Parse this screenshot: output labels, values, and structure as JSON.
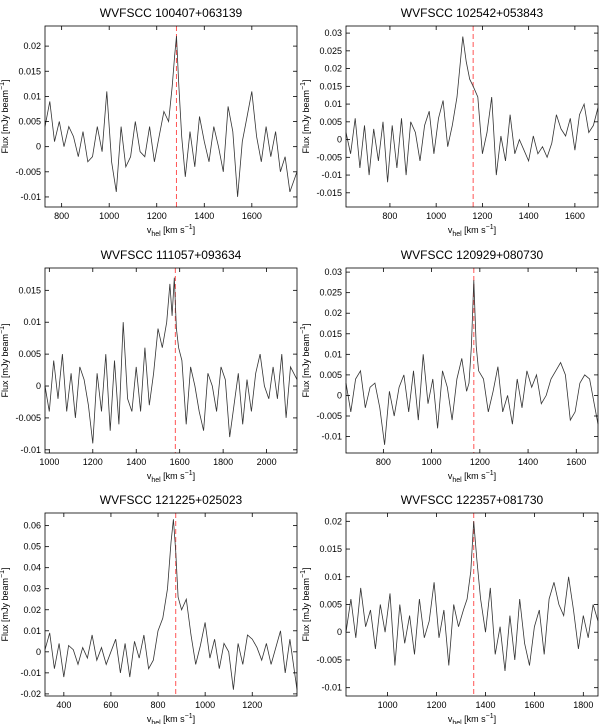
{
  "chart_data": [
    {
      "type": "line",
      "title": "WVFSCC 100407+063139",
      "xlabel": "v_hel [km s^-1]",
      "ylabel": "Flux [mJy beam^-1]",
      "xlim": [
        730,
        1790
      ],
      "ylim": [
        -0.012,
        0.024
      ],
      "xticks": [
        800,
        1000,
        1200,
        1400,
        1600
      ],
      "yticks": [
        -0.01,
        -0.005,
        0,
        0.005,
        0.01,
        0.015,
        0.02
      ],
      "ytick_labels": [
        "-0.01",
        "-0.005",
        "0",
        "0.005",
        "0.01",
        "0.015",
        "0.02"
      ],
      "marker_x": 1283,
      "series": [
        {
          "x": [
            730,
            750,
            770,
            790,
            810,
            830,
            850,
            870,
            890,
            910,
            930,
            950,
            970,
            990,
            1010,
            1030,
            1050,
            1070,
            1090,
            1110,
            1130,
            1150,
            1170,
            1190,
            1210,
            1230,
            1250,
            1265,
            1275,
            1283,
            1292,
            1305,
            1320,
            1340,
            1360,
            1380,
            1400,
            1420,
            1440,
            1460,
            1480,
            1500,
            1520,
            1540,
            1560,
            1580,
            1600,
            1620,
            1640,
            1660,
            1680,
            1700,
            1720,
            1740,
            1760,
            1790
          ],
          "y": [
            0.004,
            0.009,
            0.001,
            0.005,
            0.0,
            0.004,
            0.002,
            -0.002,
            0.003,
            -0.003,
            -0.002,
            0.004,
            -0.001,
            0.011,
            -0.003,
            -0.009,
            0.004,
            -0.004,
            -0.002,
            0.005,
            -0.001,
            -0.002,
            0.004,
            -0.003,
            0.002,
            0.007,
            0.005,
            0.012,
            0.018,
            0.022,
            0.013,
            0.002,
            -0.006,
            0.003,
            -0.004,
            0.006,
            0.001,
            -0.003,
            0.004,
            0.0,
            -0.005,
            0.008,
            0.003,
            -0.01,
            0.001,
            0.006,
            0.011,
            0.002,
            -0.003,
            0.004,
            -0.002,
            0.003,
            -0.005,
            -0.002,
            -0.009,
            -0.005
          ]
        }
      ]
    },
    {
      "type": "line",
      "title": "WVFSCC 102542+053843",
      "xlabel": "v_hel [km s^-1]",
      "ylabel": "Flux [mJy beam^-1]",
      "xlim": [
        610,
        1700
      ],
      "ylim": [
        -0.019,
        0.032
      ],
      "xticks": [
        800,
        1000,
        1200,
        1400,
        1600
      ],
      "yticks": [
        -0.015,
        -0.01,
        -0.005,
        0,
        0.005,
        0.01,
        0.015,
        0.02,
        0.025,
        0.03
      ],
      "ytick_labels": [
        "-0.015",
        "-0.01",
        "-0.005",
        "0",
        "0.005",
        "0.01",
        "0.015",
        "0.02",
        "0.025",
        "0.03"
      ],
      "marker_x": 1160,
      "series": [
        {
          "x": [
            610,
            630,
            650,
            670,
            690,
            710,
            730,
            750,
            770,
            790,
            810,
            830,
            850,
            870,
            890,
            910,
            930,
            950,
            970,
            990,
            1010,
            1030,
            1050,
            1070,
            1090,
            1105,
            1115,
            1130,
            1145,
            1160,
            1180,
            1200,
            1220,
            1240,
            1260,
            1280,
            1300,
            1320,
            1340,
            1360,
            1380,
            1400,
            1420,
            1440,
            1460,
            1480,
            1500,
            1520,
            1540,
            1560,
            1580,
            1600,
            1620,
            1640,
            1660,
            1680,
            1700
          ],
          "y": [
            0.002,
            -0.004,
            0.006,
            -0.008,
            0.004,
            -0.01,
            0.003,
            -0.006,
            0.005,
            -0.012,
            0.004,
            -0.008,
            0.006,
            -0.01,
            0.005,
            0.002,
            -0.006,
            0.004,
            0.008,
            -0.004,
            0.006,
            0.011,
            -0.002,
            0.004,
            0.012,
            0.022,
            0.029,
            0.022,
            0.017,
            0.015,
            0.012,
            -0.004,
            0.002,
            0.012,
            -0.01,
            0.001,
            -0.006,
            0.007,
            -0.004,
            0.0,
            -0.003,
            -0.006,
            0.001,
            -0.004,
            -0.002,
            -0.005,
            -0.001,
            0.007,
            0.003,
            0.001,
            0.006,
            -0.003,
            0.007,
            0.01,
            0.002,
            0.004,
            0.009
          ]
        }
      ]
    },
    {
      "type": "line",
      "title": "WVFSCC 111057+093634",
      "xlabel": "v_hel [km s^-1]",
      "ylabel": "Flux [mJy beam^-1]",
      "xlim": [
        980,
        2140
      ],
      "ylim": [
        -0.0105,
        0.0185
      ],
      "xticks": [
        1000,
        1200,
        1400,
        1600,
        1800,
        2000
      ],
      "yticks": [
        -0.01,
        -0.005,
        0,
        0.005,
        0.01,
        0.015
      ],
      "ytick_labels": [
        "-0.01",
        "-0.005",
        "0",
        "0.005",
        "0.01",
        "0.015"
      ],
      "marker_x": 1580,
      "series": [
        {
          "x": [
            980,
            1000,
            1020,
            1040,
            1060,
            1080,
            1100,
            1120,
            1140,
            1160,
            1180,
            1200,
            1220,
            1240,
            1260,
            1280,
            1300,
            1320,
            1340,
            1360,
            1380,
            1400,
            1420,
            1440,
            1460,
            1480,
            1500,
            1520,
            1540,
            1555,
            1565,
            1575,
            1585,
            1595,
            1610,
            1630,
            1650,
            1670,
            1690,
            1710,
            1730,
            1750,
            1770,
            1790,
            1810,
            1830,
            1850,
            1870,
            1890,
            1910,
            1930,
            1950,
            1970,
            1990,
            2010,
            2030,
            2050,
            2070,
            2090,
            2110,
            2140
          ],
          "y": [
            0.0,
            -0.004,
            0.004,
            -0.002,
            0.005,
            -0.004,
            0.002,
            -0.005,
            0.003,
            0.001,
            -0.003,
            -0.009,
            0.002,
            -0.004,
            0.005,
            -0.007,
            0.004,
            -0.006,
            0.01,
            -0.002,
            -0.004,
            0.003,
            -0.004,
            0.006,
            -0.003,
            0.002,
            0.009,
            0.006,
            0.01,
            0.016,
            0.011,
            0.017,
            0.009,
            0.006,
            0.004,
            -0.006,
            0.003,
            0.0,
            -0.004,
            -0.007,
            0.002,
            0.0,
            -0.004,
            0.003,
            0.001,
            -0.008,
            -0.003,
            0.002,
            -0.006,
            0.001,
            -0.004,
            0.002,
            0.005,
            0.0,
            -0.002,
            0.003,
            -0.002,
            0.005,
            -0.005,
            0.003,
            0.001
          ]
        }
      ]
    },
    {
      "type": "line",
      "title": "WVFSCC 120929+080730",
      "xlabel": "v_hel [km s^-1]",
      "ylabel": "Flux [mJy beam^-1]",
      "xlim": [
        645,
        1690
      ],
      "ylim": [
        -0.014,
        0.031
      ],
      "xticks": [
        800,
        1000,
        1200,
        1400,
        1600
      ],
      "yticks": [
        -0.01,
        -0.005,
        0,
        0.005,
        0.01,
        0.015,
        0.02,
        0.025,
        0.03
      ],
      "ytick_labels": [
        "-0.01",
        "-0.005",
        "0",
        "0.005",
        "0.01",
        "0.015",
        "0.02",
        "0.025",
        "0.03"
      ],
      "marker_x": 1175,
      "series": [
        {
          "x": [
            645,
            665,
            685,
            705,
            725,
            745,
            765,
            785,
            805,
            825,
            845,
            865,
            885,
            905,
            925,
            945,
            965,
            985,
            1005,
            1025,
            1045,
            1065,
            1085,
            1105,
            1125,
            1145,
            1155,
            1165,
            1175,
            1185,
            1195,
            1215,
            1235,
            1255,
            1275,
            1295,
            1315,
            1335,
            1355,
            1375,
            1395,
            1415,
            1435,
            1455,
            1475,
            1495,
            1515,
            1535,
            1555,
            1575,
            1595,
            1615,
            1635,
            1655,
            1690
          ],
          "y": [
            0.003,
            -0.004,
            0.004,
            0.006,
            -0.003,
            0.002,
            0.003,
            -0.003,
            -0.012,
            0.001,
            -0.005,
            0.002,
            0.005,
            -0.004,
            0.006,
            -0.006,
            0.01,
            -0.002,
            0.004,
            -0.008,
            0.006,
            0.002,
            -0.006,
            0.004,
            0.009,
            0.001,
            0.003,
            0.012,
            0.028,
            0.012,
            0.006,
            0.004,
            -0.004,
            0.001,
            0.007,
            -0.004,
            0.0,
            -0.007,
            0.004,
            -0.003,
            0.006,
            0.002,
            0.005,
            -0.002,
            0.0,
            0.004,
            0.006,
            0.008,
            0.005,
            -0.006,
            -0.004,
            0.003,
            0.005,
            0.004,
            -0.007
          ]
        }
      ]
    },
    {
      "type": "line",
      "title": "WVFSCC 121225+025023",
      "xlabel": "v_hel [km s^-1]",
      "ylabel": "Flux [mJy beam^-1]",
      "xlim": [
        320,
        1390
      ],
      "ylim": [
        -0.021,
        0.066
      ],
      "xticks": [
        400,
        600,
        800,
        1000,
        1200
      ],
      "yticks": [
        -0.02,
        -0.01,
        0,
        0.01,
        0.02,
        0.03,
        0.04,
        0.05,
        0.06
      ],
      "ytick_labels": [
        "-0.02",
        "-0.01",
        "0",
        "0.01",
        "0.02",
        "0.03",
        "0.04",
        "0.05",
        "0.06"
      ],
      "marker_x": 875,
      "series": [
        {
          "x": [
            320,
            340,
            360,
            380,
            400,
            420,
            440,
            460,
            480,
            500,
            520,
            540,
            560,
            580,
            600,
            620,
            640,
            660,
            680,
            700,
            720,
            740,
            760,
            780,
            800,
            820,
            840,
            855,
            865,
            875,
            885,
            900,
            920,
            940,
            960,
            980,
            1000,
            1020,
            1040,
            1060,
            1080,
            1100,
            1120,
            1140,
            1160,
            1180,
            1200,
            1220,
            1240,
            1260,
            1280,
            1300,
            1320,
            1340,
            1360,
            1390
          ],
          "y": [
            0.001,
            0.009,
            -0.008,
            0.004,
            -0.012,
            0.003,
            0.001,
            -0.006,
            0.002,
            -0.003,
            0.008,
            -0.004,
            0.002,
            -0.006,
            0.0,
            0.006,
            -0.01,
            0.004,
            -0.012,
            0.005,
            -0.003,
            0.008,
            -0.008,
            -0.004,
            0.01,
            0.016,
            0.03,
            0.052,
            0.063,
            0.048,
            0.026,
            0.02,
            0.025,
            0.008,
            -0.006,
            0.003,
            0.014,
            -0.003,
            0.006,
            -0.008,
            0.004,
            0.0,
            -0.018,
            0.004,
            -0.006,
            0.008,
            0.006,
            0.002,
            -0.004,
            0.004,
            -0.006,
            0.002,
            0.01,
            -0.01,
            0.006,
            -0.018
          ]
        }
      ]
    },
    {
      "type": "line",
      "title": "WVFSCC 122357+081730",
      "xlabel": "v_hel [km s^-1]",
      "ylabel": "Flux [mJy beam^-1]",
      "xlim": [
        830,
        1860
      ],
      "ylim": [
        -0.0115,
        0.0215
      ],
      "xticks": [
        1000,
        1200,
        1400,
        1600,
        1800
      ],
      "yticks": [
        -0.01,
        -0.005,
        0,
        0.005,
        0.01,
        0.015,
        0.02
      ],
      "ytick_labels": [
        "-0.01",
        "-0.005",
        "0",
        "0.005",
        "0.01",
        "0.015",
        "0.02"
      ],
      "marker_x": 1352,
      "series": [
        {
          "x": [
            830,
            850,
            870,
            890,
            910,
            930,
            950,
            970,
            990,
            1010,
            1030,
            1050,
            1070,
            1090,
            1110,
            1130,
            1150,
            1170,
            1190,
            1210,
            1230,
            1250,
            1270,
            1290,
            1310,
            1325,
            1340,
            1352,
            1365,
            1380,
            1400,
            1420,
            1440,
            1460,
            1480,
            1500,
            1520,
            1540,
            1560,
            1580,
            1600,
            1620,
            1640,
            1660,
            1680,
            1700,
            1720,
            1740,
            1760,
            1780,
            1800,
            1820,
            1840,
            1860
          ],
          "y": [
            0.0,
            0.006,
            -0.001,
            0.008,
            0.001,
            0.004,
            -0.003,
            0.005,
            0.0,
            0.007,
            -0.006,
            0.005,
            -0.002,
            0.003,
            -0.004,
            0.006,
            -0.001,
            0.002,
            0.009,
            -0.001,
            0.004,
            -0.006,
            0.005,
            0.001,
            0.004,
            0.006,
            0.011,
            0.02,
            0.013,
            0.006,
            0.0,
            0.008,
            -0.004,
            0.001,
            -0.007,
            0.003,
            -0.005,
            0.006,
            -0.002,
            -0.006,
            0.001,
            0.004,
            -0.004,
            0.006,
            0.009,
            0.005,
            0.003,
            0.01,
            0.004,
            -0.003,
            0.003,
            -0.001,
            0.005,
            0.002
          ]
        }
      ]
    }
  ]
}
